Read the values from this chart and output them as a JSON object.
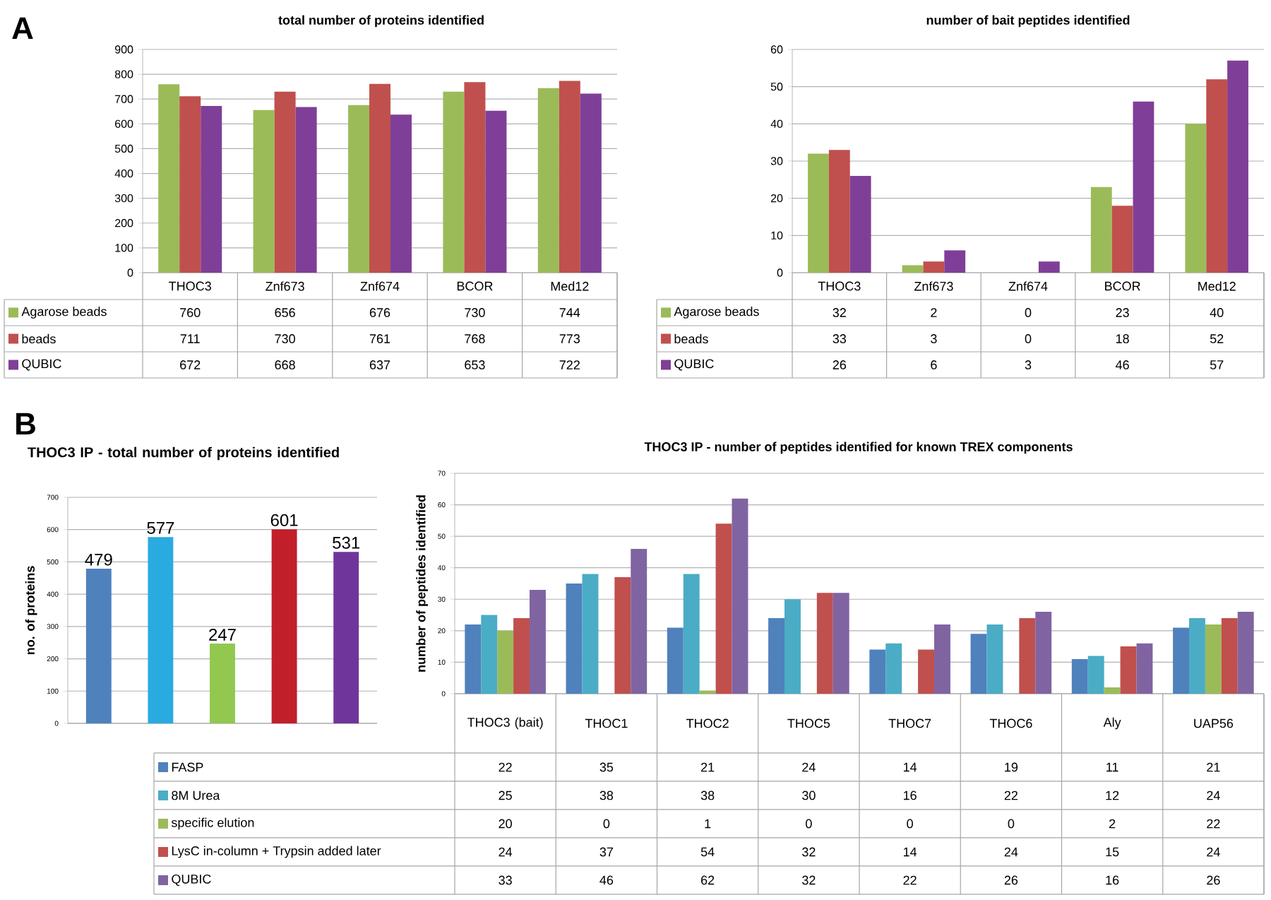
{
  "chart_data": [
    {
      "type": "bar",
      "title": "total number of proteins identified",
      "annotations": [
        "A"
      ],
      "categories": [
        "THOC3",
        "Znf673",
        "Znf674",
        "BCOR",
        "Med12"
      ],
      "series": [
        {
          "name": "Agarose beads",
          "color": "#9bbb59",
          "values": [
            760,
            656,
            676,
            730,
            744
          ]
        },
        {
          "name": "beads",
          "color": "#c0504d",
          "values": [
            711,
            730,
            761,
            768,
            773
          ]
        },
        {
          "name": "QUBIC",
          "color": "#7f3f98",
          "values": [
            672,
            668,
            637,
            653,
            722
          ]
        }
      ],
      "ylim": [
        0,
        900
      ],
      "yticks": [
        0,
        100,
        200,
        300,
        400,
        500,
        600,
        700,
        800,
        900
      ],
      "grid": "y",
      "data_labels": true,
      "legend": "bottom left"
    },
    {
      "type": "bar",
      "title": "number of bait peptides identified",
      "categories": [
        "THOC3",
        "Znf673",
        "Znf674",
        "BCOR",
        "Med12"
      ],
      "series": [
        {
          "name": "Agarose beads",
          "color": "#9bbb59",
          "values": [
            32,
            2,
            0,
            23,
            40
          ]
        },
        {
          "name": "beads",
          "color": "#c0504d",
          "values": [
            33,
            3,
            0,
            18,
            52
          ]
        },
        {
          "name": "QUBIC",
          "color": "#7f3f98",
          "values": [
            26,
            6,
            3,
            46,
            57
          ]
        }
      ],
      "ylim": [
        0,
        60
      ],
      "yticks": [
        0,
        10,
        20,
        30,
        40,
        50,
        60
      ],
      "grid": "y",
      "data_labels": true,
      "legend": "bottom left"
    },
    {
      "type": "bar",
      "title": "THOC3 IP - total number of proteins identified",
      "annotations": [
        "B"
      ],
      "ylabel": "no. of proteins",
      "categories": [
        null,
        null,
        null,
        null,
        null
      ],
      "values": [
        479,
        577,
        247,
        601,
        531
      ],
      "colors": [
        "#4f81bd",
        "#29abe2",
        "#92c850",
        "#c1202a",
        "#70359a"
      ],
      "ylim": [
        0,
        700
      ],
      "yticks": [
        0,
        100,
        200,
        300,
        400,
        500,
        600,
        700
      ],
      "grid": "y",
      "data_labels": true
    },
    {
      "type": "bar",
      "title": "THOC3 IP - number of peptides identified for known TREX components",
      "ylabel": "number of peptides identified",
      "categories": [
        "THOC3 (bait)",
        "THOC1",
        "THOC2",
        "THOC5",
        "THOC7",
        "THOC6",
        "Aly",
        "UAP56"
      ],
      "series": [
        {
          "name": "FASP",
          "color": "#4f81bd",
          "values": [
            22,
            35,
            21,
            24,
            14,
            19,
            11,
            21
          ]
        },
        {
          "name": "8M Urea",
          "color": "#4bacc6",
          "values": [
            25,
            38,
            38,
            30,
            16,
            22,
            12,
            24
          ]
        },
        {
          "name": "specific elution",
          "color": "#9bbb59",
          "values": [
            20,
            0,
            1,
            0,
            0,
            0,
            2,
            22
          ]
        },
        {
          "name": "LysC in-column + Trypsin added later",
          "color": "#c0504d",
          "values": [
            24,
            37,
            54,
            32,
            14,
            24,
            15,
            24
          ]
        },
        {
          "name": "QUBIC",
          "color": "#8064a2",
          "values": [
            33,
            46,
            62,
            32,
            22,
            26,
            16,
            26
          ]
        }
      ],
      "ylim": [
        0,
        70
      ],
      "yticks": [
        0,
        10,
        20,
        30,
        40,
        50,
        60,
        70
      ],
      "grid": "y",
      "data_labels": true,
      "legend": "bottom left"
    }
  ]
}
